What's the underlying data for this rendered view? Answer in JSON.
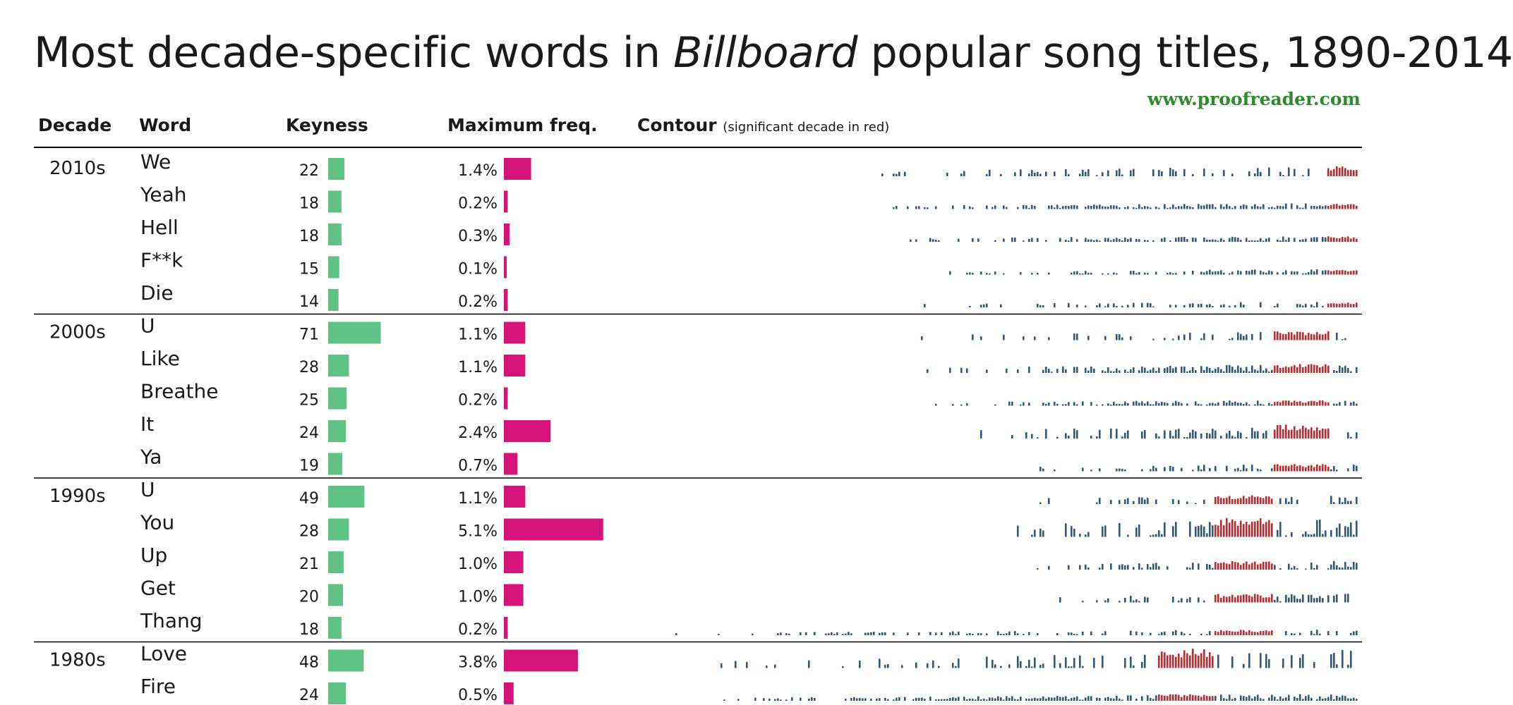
{
  "title": {
    "prefix": "Most decade-specific words in ",
    "italic": "Billboard",
    "suffix": " popular song titles, 1890-2014"
  },
  "credit": "www.proofreader.com",
  "headers": {
    "decade": "Decade",
    "word": "Word",
    "keyness": "Keyness",
    "maxfreq": "Maximum freq.",
    "contour": "Contour",
    "contour_note": "(significant decade in red)"
  },
  "colors": {
    "keyness_bar": "#5ec384",
    "maxfreq_bar": "#d6137a",
    "contour_normal": "#2f5597",
    "contour_significant": "#e02020",
    "rule": "#000000"
  },
  "chart_data": {
    "type": "table",
    "title": "Most decade-specific words in Billboard popular song titles, 1890-2014",
    "columns": [
      "Decade",
      "Word",
      "Keyness",
      "Maximum freq.",
      "Contour"
    ],
    "groups": [
      {
        "decade": "2010s",
        "rows": [
          {
            "word": "We",
            "keyness": 22,
            "maxfreq": "1.4%",
            "maxfreq_value": 1.4
          },
          {
            "word": "Yeah",
            "keyness": 18,
            "maxfreq": "0.2%",
            "maxfreq_value": 0.2
          },
          {
            "word": "Hell",
            "keyness": 18,
            "maxfreq": "0.3%",
            "maxfreq_value": 0.3
          },
          {
            "word": "F**k",
            "keyness": 15,
            "maxfreq": "0.1%",
            "maxfreq_value": 0.1
          },
          {
            "word": "Die",
            "keyness": 14,
            "maxfreq": "0.2%",
            "maxfreq_value": 0.2
          }
        ]
      },
      {
        "decade": "2000s",
        "rows": [
          {
            "word": "U",
            "keyness": 71,
            "maxfreq": "1.1%",
            "maxfreq_value": 1.1
          },
          {
            "word": "Like",
            "keyness": 28,
            "maxfreq": "1.1%",
            "maxfreq_value": 1.1
          },
          {
            "word": "Breathe",
            "keyness": 25,
            "maxfreq": "0.2%",
            "maxfreq_value": 0.2
          },
          {
            "word": "It",
            "keyness": 24,
            "maxfreq": "2.4%",
            "maxfreq_value": 2.4
          },
          {
            "word": "Ya",
            "keyness": 19,
            "maxfreq": "0.7%",
            "maxfreq_value": 0.7
          }
        ]
      },
      {
        "decade": "1990s",
        "rows": [
          {
            "word": "U",
            "keyness": 49,
            "maxfreq": "1.1%",
            "maxfreq_value": 1.1
          },
          {
            "word": "You",
            "keyness": 28,
            "maxfreq": "5.1%",
            "maxfreq_value": 5.1
          },
          {
            "word": "Up",
            "keyness": 21,
            "maxfreq": "1.0%",
            "maxfreq_value": 1.0
          },
          {
            "word": "Get",
            "keyness": 20,
            "maxfreq": "1.0%",
            "maxfreq_value": 1.0
          },
          {
            "word": "Thang",
            "keyness": 18,
            "maxfreq": "0.2%",
            "maxfreq_value": 0.2
          }
        ]
      },
      {
        "decade": "1980s",
        "rows": [
          {
            "word": "Love",
            "keyness": 48,
            "maxfreq": "3.8%",
            "maxfreq_value": 3.8
          },
          {
            "word": "Fire",
            "keyness": 24,
            "maxfreq": "0.5%",
            "maxfreq_value": 0.5
          }
        ]
      }
    ],
    "contour_range_years": [
      1890,
      2014
    ],
    "contour_note": "significant decade in red"
  }
}
